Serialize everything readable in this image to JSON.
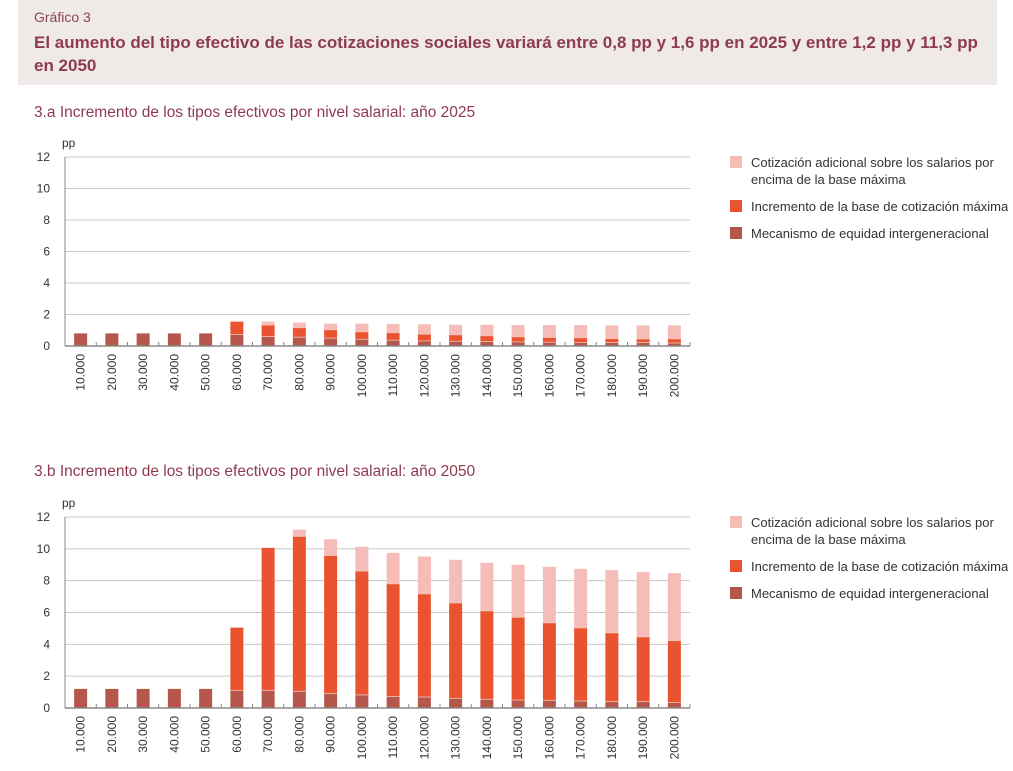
{
  "header": {
    "kicker": "Gráfico 3",
    "title": "El aumento del tipo efectivo de las cotizaciones sociales variará entre 0,8 pp y 1,6 pp en 2025 y entre 1,2 pp y 11,3 pp en 2050"
  },
  "colors": {
    "mecanismo": "#b5574b",
    "base_maxima": "#e9532f",
    "adicional": "#f6bcb8",
    "header_bg": "#efe9e8",
    "title": "#8e3b4e"
  },
  "chart_data": [
    {
      "type": "bar",
      "stacked": true,
      "title": "3.a  Incremento de los tipos efectivos por nivel salarial: año 2025",
      "ylabel": "pp",
      "ylim": [
        0,
        12
      ],
      "yticks": [
        "0",
        "2",
        "4",
        "6",
        "8",
        "10",
        "12"
      ],
      "grid": true,
      "legend": "right",
      "categories": [
        "10.000",
        "20.000",
        "30.000",
        "40.000",
        "50.000",
        "60.000",
        "70.000",
        "80.000",
        "90.000",
        "100.000",
        "110.000",
        "120.000",
        "130.000",
        "140.000",
        "150.000",
        "160.000",
        "170.000",
        "180.000",
        "190.000",
        "200.000"
      ],
      "series": [
        {
          "name": "Mecanismo de equidad intergeneracional",
          "values": [
            0.8,
            0.8,
            0.8,
            0.8,
            0.8,
            0.73,
            0.6,
            0.56,
            0.5,
            0.43,
            0.37,
            0.32,
            0.3,
            0.28,
            0.26,
            0.24,
            0.22,
            0.22,
            0.22,
            0.19
          ]
        },
        {
          "name": "Incremento de la base de cotización máxima",
          "values": [
            0,
            0,
            0,
            0,
            0,
            0.82,
            0.73,
            0.6,
            0.53,
            0.47,
            0.47,
            0.43,
            0.41,
            0.37,
            0.32,
            0.3,
            0.3,
            0.25,
            0.23,
            0.26
          ]
        },
        {
          "name": "Cotización adicional sobre los salarios por encima de la base máxima",
          "values": [
            0,
            0,
            0,
            0,
            0,
            0.05,
            0.22,
            0.32,
            0.39,
            0.52,
            0.56,
            0.63,
            0.64,
            0.7,
            0.75,
            0.79,
            0.81,
            0.84,
            0.86,
            0.86
          ]
        }
      ]
    },
    {
      "type": "bar",
      "stacked": true,
      "title": "3.b  Incremento de los tipos efectivos por nivel salarial: año 2050",
      "ylabel": "pp",
      "ylim": [
        0,
        12
      ],
      "yticks": [
        "0",
        "2",
        "4",
        "6",
        "8",
        "10",
        "12"
      ],
      "grid": true,
      "legend": "right",
      "categories": [
        "10.000",
        "20.000",
        "30.000",
        "40.000",
        "50.000",
        "60.000",
        "70.000",
        "80.000",
        "90.000",
        "100.000",
        "110.000",
        "120.000",
        "130.000",
        "140.000",
        "150.000",
        "160.000",
        "170.000",
        "180.000",
        "190.000",
        "200.000"
      ],
      "series": [
        {
          "name": "Mecanismo de equidad intergeneracional",
          "values": [
            1.2,
            1.2,
            1.2,
            1.2,
            1.2,
            1.11,
            1.11,
            1.05,
            0.92,
            0.82,
            0.73,
            0.69,
            0.61,
            0.55,
            0.5,
            0.48,
            0.44,
            0.4,
            0.4,
            0.34
          ]
        },
        {
          "name": "Incremento de la base de cotización máxima",
          "values": [
            0,
            0,
            0,
            0,
            0,
            3.94,
            8.95,
            9.73,
            8.66,
            7.78,
            7.07,
            6.48,
            5.99,
            5.55,
            5.2,
            4.87,
            4.59,
            4.32,
            4.07,
            3.89
          ]
        },
        {
          "name": "Cotización adicional sobre los salarios por encima de la base máxima",
          "values": [
            0,
            0,
            0,
            0,
            0,
            0,
            0,
            0.42,
            1.02,
            1.53,
            1.95,
            2.35,
            2.71,
            3.02,
            3.3,
            3.52,
            3.71,
            3.94,
            4.08,
            4.24
          ]
        }
      ]
    }
  ]
}
